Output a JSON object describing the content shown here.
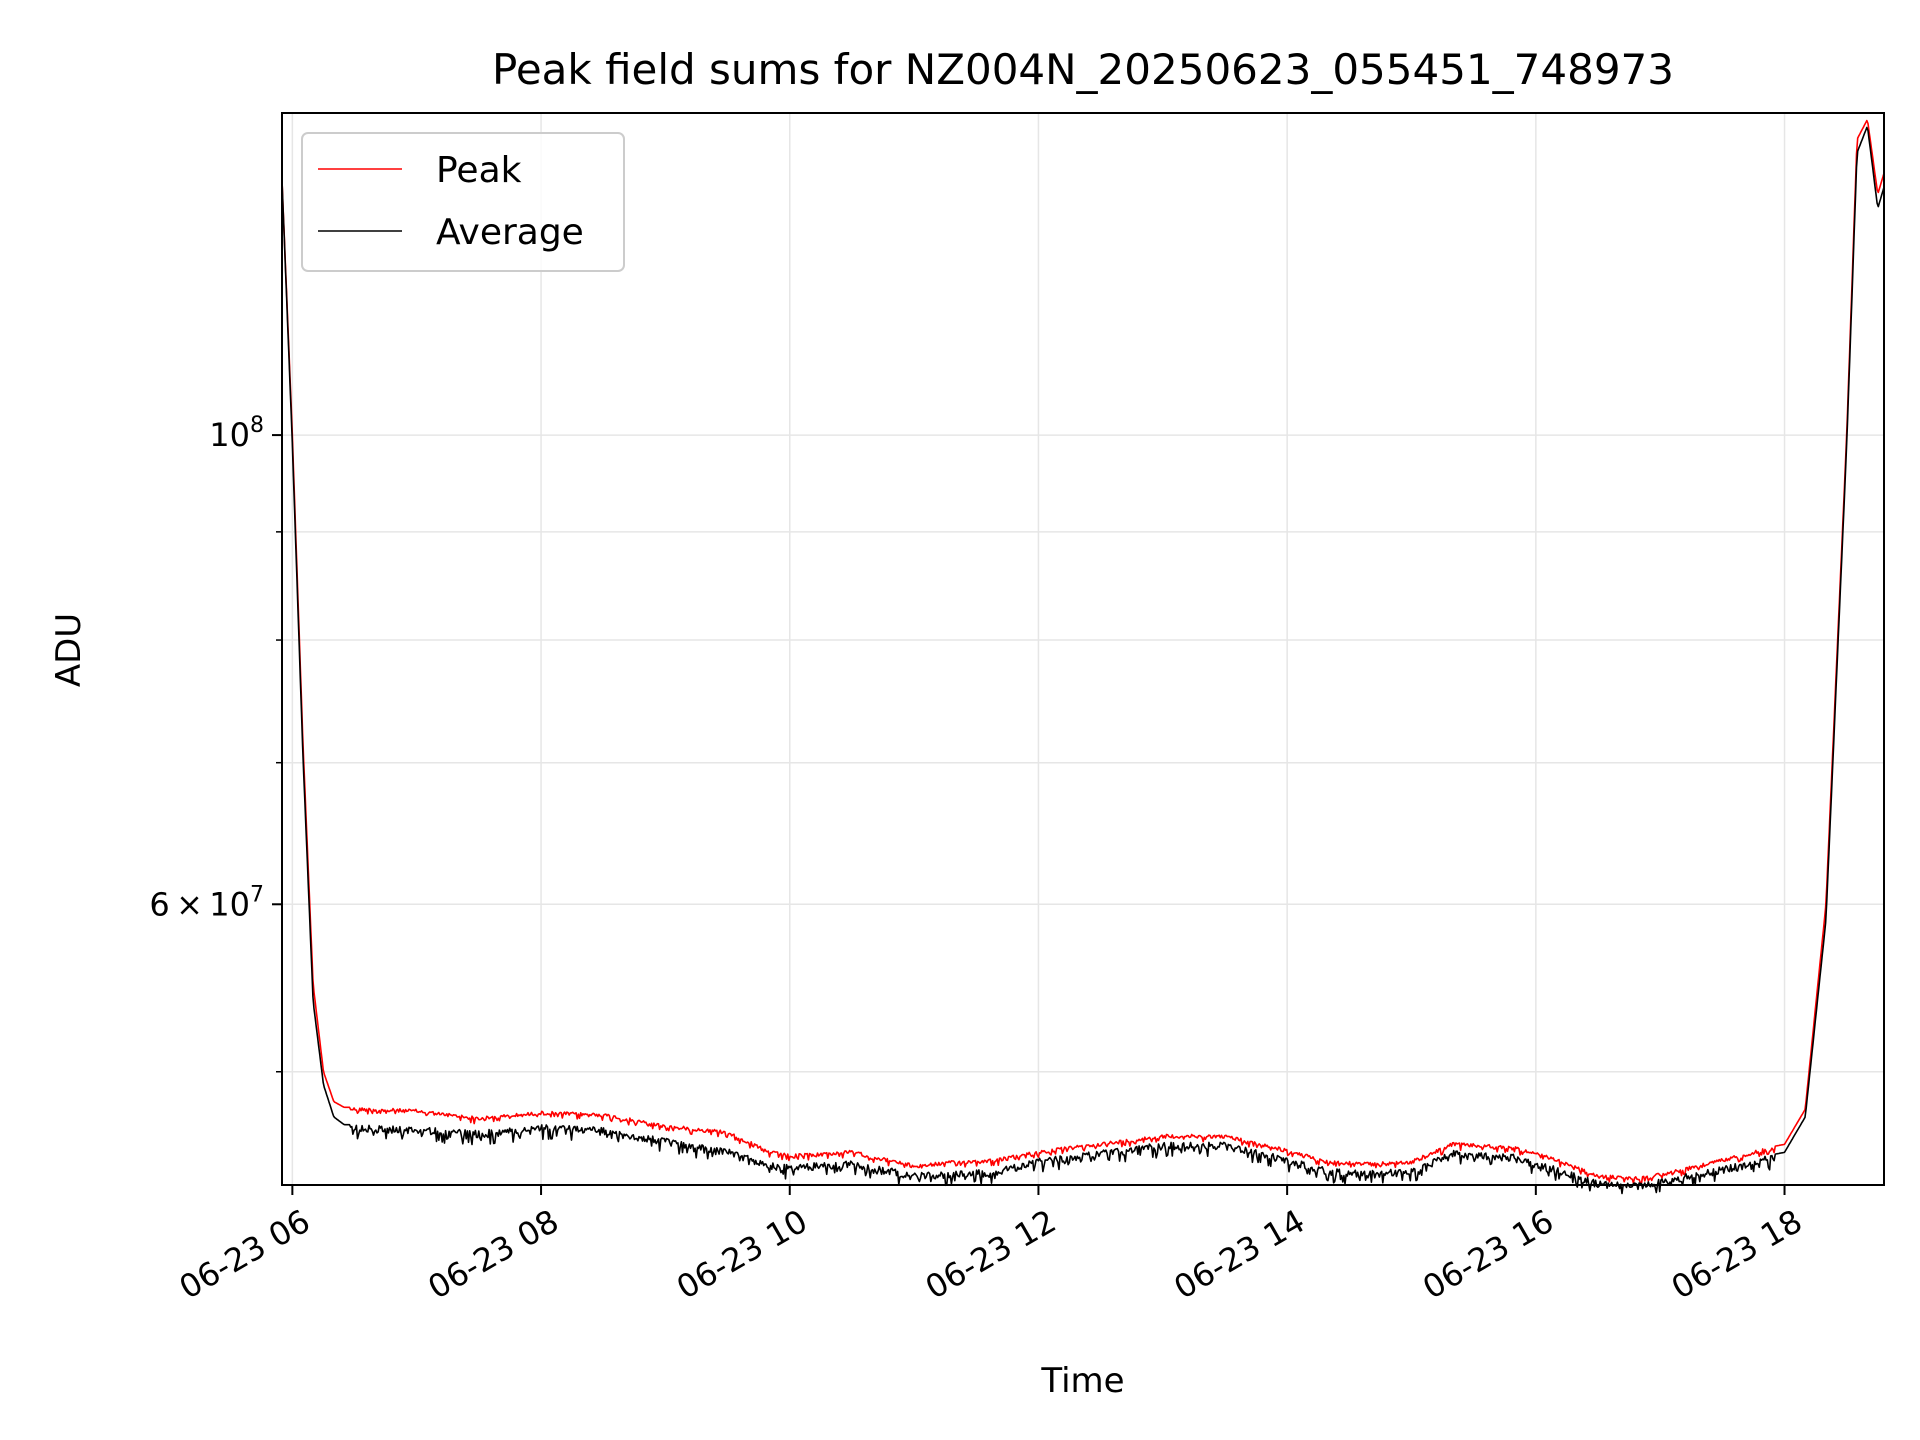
{
  "chart_data": {
    "type": "line",
    "title": "Peak field sums for NZ004N_20250623_055451_748973",
    "xlabel": "Time",
    "ylabel": "ADU",
    "yscale": "log",
    "xlim": [
      "2025-06-23T05:55",
      "2025-06-23T18:48"
    ],
    "ylim": [
      44200000,
      142000000
    ],
    "grid": true,
    "legend_position": "top-left",
    "x_tick_labels": [
      "06-23 06",
      "06-23 08",
      "06-23 10",
      "06-23 12",
      "06-23 14",
      "06-23 16",
      "06-23 18"
    ],
    "y_tick_labels": [
      {
        "mantissa": "",
        "exponent": "8",
        "value": 100000000
      },
      {
        "mantissa": "6",
        "exponent": "7",
        "value": 60000000
      }
    ],
    "x": [
      "2025-06-23T05:55",
      "2025-06-23T06:00",
      "2025-06-23T06:05",
      "2025-06-23T06:10",
      "2025-06-23T06:15",
      "2025-06-23T06:20",
      "2025-06-23T06:25",
      "2025-06-23T06:30",
      "2025-06-23T07:00",
      "2025-06-23T07:30",
      "2025-06-23T08:00",
      "2025-06-23T08:30",
      "2025-06-23T09:00",
      "2025-06-23T09:30",
      "2025-06-23T09:50",
      "2025-06-23T10:00",
      "2025-06-23T10:30",
      "2025-06-23T11:00",
      "2025-06-23T11:20",
      "2025-06-23T11:40",
      "2025-06-23T12:00",
      "2025-06-23T12:30",
      "2025-06-23T13:00",
      "2025-06-23T13:30",
      "2025-06-23T13:55",
      "2025-06-23T14:20",
      "2025-06-23T14:40",
      "2025-06-23T15:00",
      "2025-06-23T15:20",
      "2025-06-23T15:50",
      "2025-06-23T16:10",
      "2025-06-23T16:30",
      "2025-06-23T16:50",
      "2025-06-23T17:10",
      "2025-06-23T17:30",
      "2025-06-23T17:50",
      "2025-06-23T18:00",
      "2025-06-23T18:10",
      "2025-06-23T18:20",
      "2025-06-23T18:30",
      "2025-06-23T18:35",
      "2025-06-23T18:40",
      "2025-06-23T18:45",
      "2025-06-23T18:48"
    ],
    "series": [
      {
        "name": "Peak",
        "color": "#ff0000",
        "values": [
          132000000,
          100000000,
          72000000,
          55000000,
          50000000,
          48400000,
          48100000,
          48100000,
          48000000,
          47600000,
          47900000,
          47800000,
          47200000,
          46900000,
          45900000,
          45700000,
          45900000,
          45200000,
          45400000,
          45500000,
          45900000,
          46300000,
          46700000,
          46700000,
          46100000,
          45400000,
          45300000,
          45400000,
          46300000,
          46100000,
          45500000,
          44700000,
          44600000,
          45000000,
          45500000,
          46000000,
          46200000,
          48000000,
          60000000,
          100000000,
          138000000,
          141000000,
          130000000,
          133000000
        ]
      },
      {
        "name": "Average",
        "color": "#000000",
        "values": [
          132000000,
          99000000,
          71000000,
          54000000,
          49300000,
          47600000,
          47200000,
          47200000,
          47100000,
          46900000,
          47200000,
          47100000,
          46500000,
          46000000,
          45300000,
          45200000,
          45400000,
          44800000,
          44900000,
          45000000,
          45500000,
          45900000,
          46300000,
          46300000,
          45700000,
          45000000,
          44900000,
          45000000,
          45900000,
          45700000,
          45100000,
          44400000,
          44300000,
          44700000,
          45100000,
          45600000,
          45800000,
          47600000,
          59000000,
          99000000,
          136000000,
          140000000,
          128000000,
          131000000
        ]
      }
    ]
  }
}
